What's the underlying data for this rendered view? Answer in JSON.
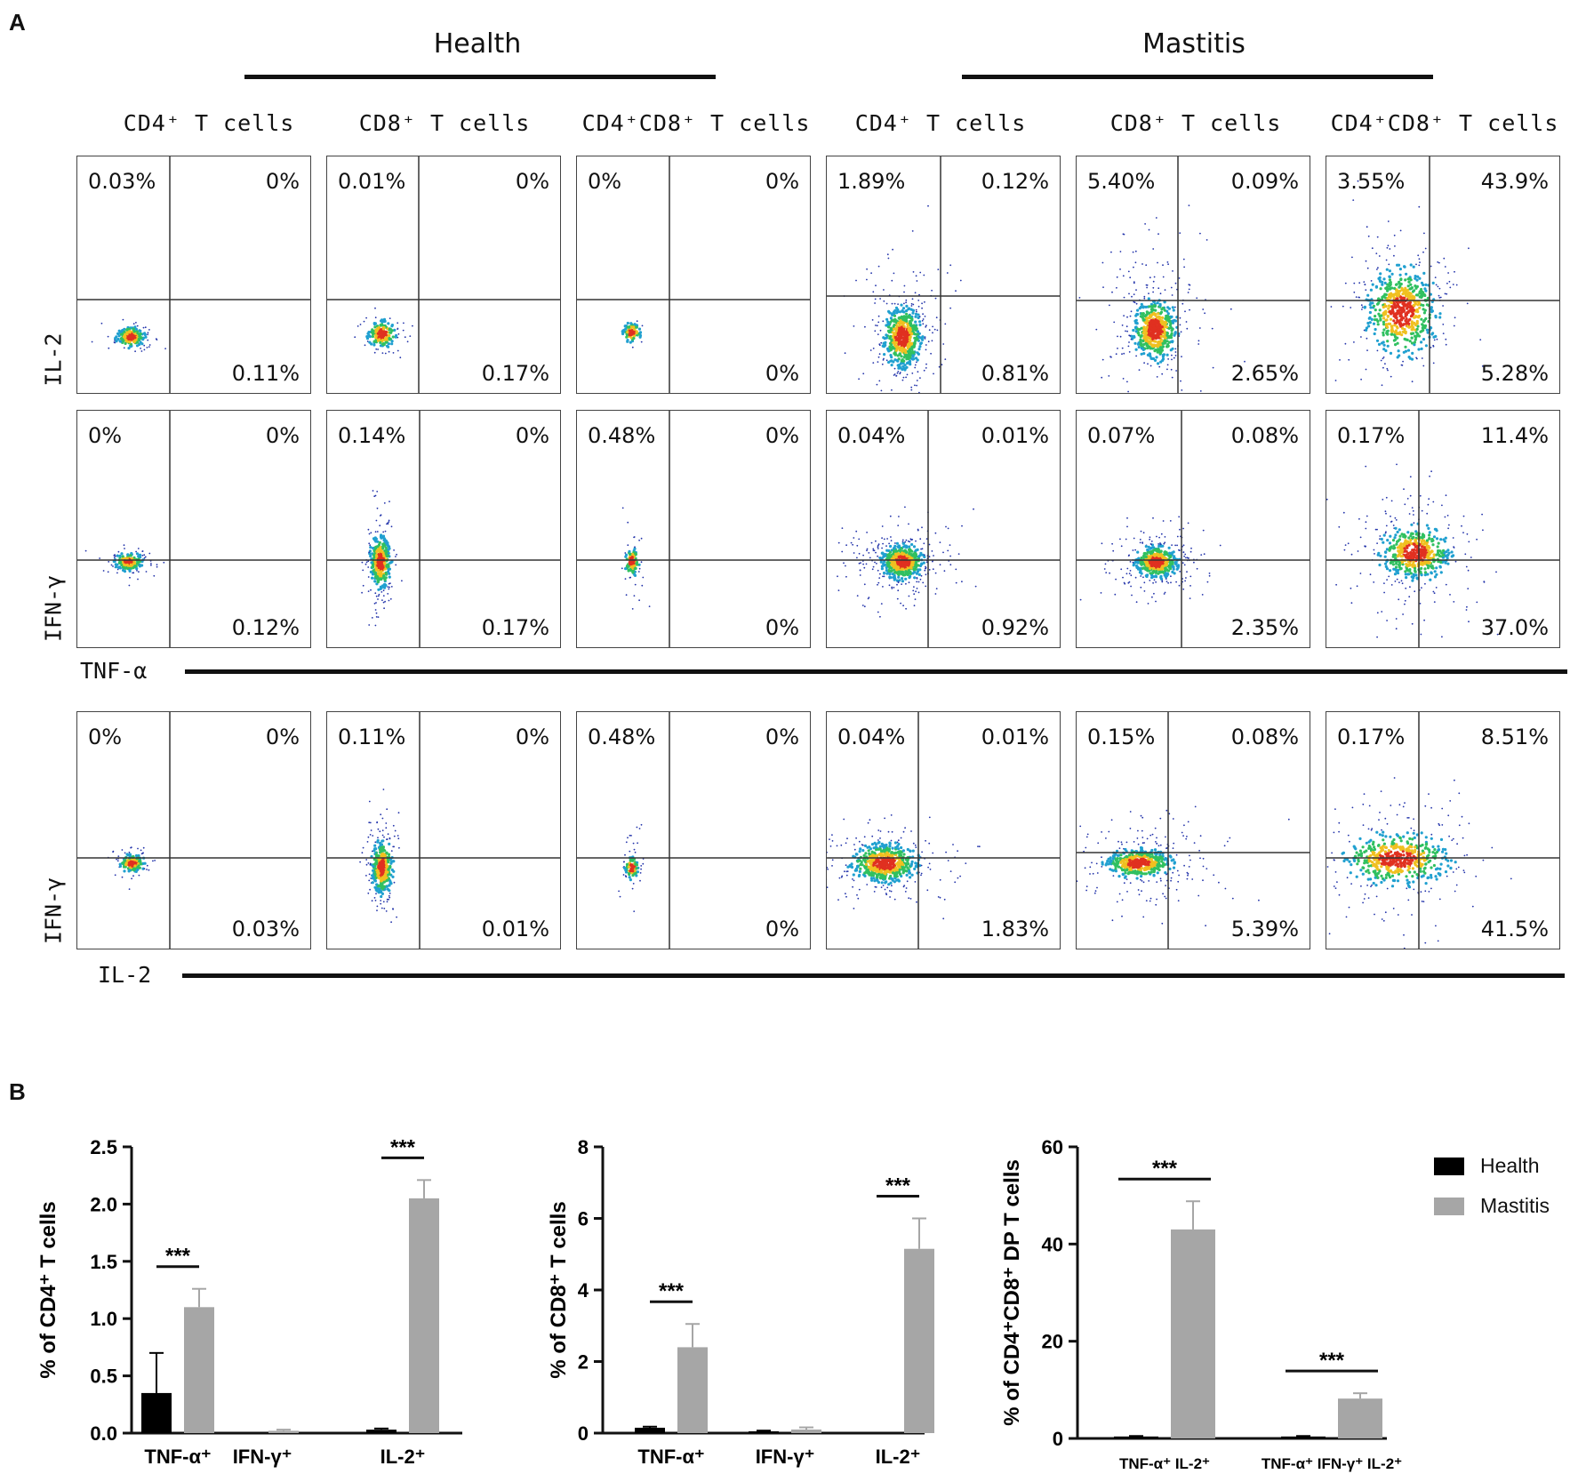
{
  "panel_a": {
    "letter": "A",
    "groups": [
      "Health",
      "Mastitis"
    ],
    "columns": [
      "CD4⁺ T cells",
      "CD8⁺ T cells",
      "CD4⁺CD8⁺ T cells",
      "CD4⁺ T cells",
      "CD8⁺ T cells",
      "CD4⁺CD8⁺ T cells"
    ],
    "row_y_labels": [
      "IL-2",
      "IFN-γ",
      "IFN-γ"
    ],
    "x_labels": [
      "TNF-α",
      "IL-2"
    ],
    "quadrants": [
      [
        {
          "tl": "0.03%",
          "tr": "0%",
          "br": "0.11%"
        },
        {
          "tl": "0.01%",
          "tr": "0%",
          "br": "0.17%"
        },
        {
          "tl": "0%",
          "tr": "0%",
          "br": "0%"
        },
        {
          "tl": "1.89%",
          "tr": "0.12%",
          "br": "0.81%"
        },
        {
          "tl": "5.40%",
          "tr": "0.09%",
          "br": "2.65%"
        },
        {
          "tl": "3.55%",
          "tr": "43.9%",
          "br": "5.28%"
        }
      ],
      [
        {
          "tl": "0%",
          "tr": "0%",
          "br": "0.12%"
        },
        {
          "tl": "0.14%",
          "tr": "0%",
          "br": "0.17%"
        },
        {
          "tl": "0.48%",
          "tr": "0%",
          "br": "0%"
        },
        {
          "tl": "0.04%",
          "tr": "0.01%",
          "br": "0.92%"
        },
        {
          "tl": "0.07%",
          "tr": "0.08%",
          "br": "2.35%"
        },
        {
          "tl": "0.17%",
          "tr": "11.4%",
          "br": "37.0%"
        }
      ],
      [
        {
          "tl": "0%",
          "tr": "0%",
          "br": "0.03%"
        },
        {
          "tl": "0.11%",
          "tr": "0%",
          "br": "0.01%"
        },
        {
          "tl": "0.48%",
          "tr": "0%",
          "br": "0%"
        },
        {
          "tl": "0.04%",
          "tr": "0.01%",
          "br": "1.83%"
        },
        {
          "tl": "0.15%",
          "tr": "0.08%",
          "br": "5.39%"
        },
        {
          "tl": "0.17%",
          "tr": "8.51%",
          "br": "41.5%"
        }
      ]
    ]
  },
  "panel_b": {
    "letter": "B",
    "legend": [
      {
        "label": "Health",
        "color": "#000000"
      },
      {
        "label": "Mastitis",
        "color": "#a6a6a6"
      }
    ]
  },
  "chart_data": [
    {
      "type": "bar",
      "ylabel": "% of CD4⁺ T cells",
      "ylim": [
        0,
        2.5
      ],
      "yticks": [
        "0.0",
        "0.5",
        "1.0",
        "1.5",
        "2.0",
        "2.5"
      ],
      "categories": [
        "TNF-α⁺",
        "IFN-γ⁺",
        "IL-2⁺"
      ],
      "series": [
        {
          "name": "Health",
          "values": [
            0.35,
            0.0,
            0.03
          ],
          "errors": [
            0.35,
            0.0,
            0.01
          ]
        },
        {
          "name": "Mastitis",
          "values": [
            1.1,
            0.02,
            2.05
          ],
          "errors": [
            0.16,
            0.01,
            0.16
          ]
        }
      ],
      "significance": [
        "***",
        "",
        "***"
      ]
    },
    {
      "type": "bar",
      "ylabel": "% of CD8⁺ T cells",
      "ylim": [
        0,
        8
      ],
      "yticks": [
        "0",
        "2",
        "4",
        "6",
        "8"
      ],
      "categories": [
        "TNF-α⁺",
        "IFN-γ⁺",
        "IL-2⁺"
      ],
      "series": [
        {
          "name": "Health",
          "values": [
            0.15,
            0.05,
            0.0
          ],
          "errors": [
            0.03,
            0.02,
            0.0
          ]
        },
        {
          "name": "Mastitis",
          "values": [
            2.4,
            0.1,
            5.15
          ],
          "errors": [
            0.65,
            0.06,
            0.85
          ]
        }
      ],
      "significance": [
        "***",
        "",
        "***"
      ]
    },
    {
      "type": "bar",
      "ylabel": "% of CD4⁺CD8⁺ DP T cells",
      "ylim": [
        0,
        60
      ],
      "yticks": [
        "0",
        "20",
        "40",
        "60"
      ],
      "categories": [
        "TNF-α⁺ IL-2⁺",
        "TNF-α⁺ IFN-γ⁺ IL-2⁺"
      ],
      "series": [
        {
          "name": "Health",
          "values": [
            0.4,
            0.4
          ],
          "errors": [
            0.1,
            0.1
          ]
        },
        {
          "name": "Mastitis",
          "values": [
            43.0,
            8.2
          ],
          "errors": [
            5.8,
            1.1
          ]
        }
      ],
      "significance": [
        "***",
        "***"
      ]
    }
  ]
}
